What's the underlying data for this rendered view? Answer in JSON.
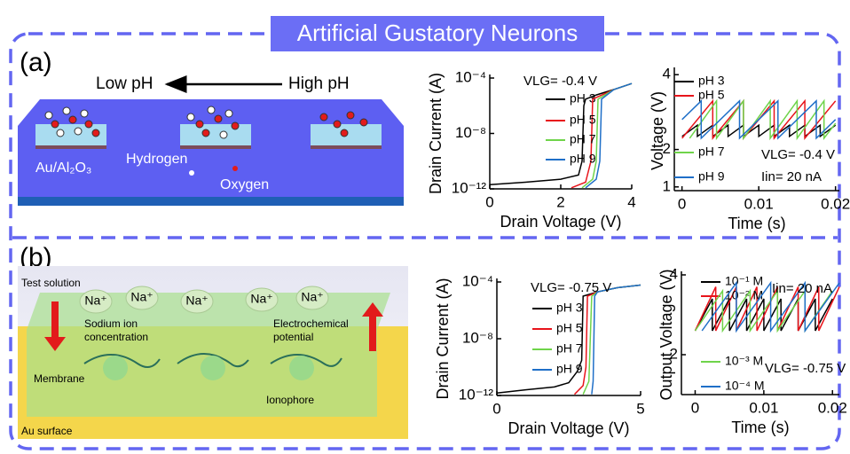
{
  "title": "Artificial Gustatory Neurons",
  "panel_a": {
    "label": "(a)",
    "low_ph": "Low pH",
    "high_ph": "High pH",
    "substrate": "Au/Al₂O₃",
    "hydrogen": "Hydrogen",
    "oxygen": "Oxygen"
  },
  "panel_b": {
    "label": "(b)",
    "test_solution": "Test solution",
    "ions": [
      "Na⁺",
      "Na⁺",
      "Na⁺",
      "Na⁺",
      "Na⁺"
    ],
    "sodium": [
      "Sodium ion",
      "concentration"
    ],
    "potential": [
      "Electrochemical",
      "potential"
    ],
    "membrane": "Membrane",
    "ionophore": "Ionophore",
    "au_surface": "Au surface"
  },
  "chart_data": [
    {
      "type": "line",
      "log_y": true,
      "xlabel": "Drain Voltage (V)",
      "ylabel": "Drain Current (A)",
      "annotations": [
        "VLG= -0.4 V"
      ],
      "xlim": [
        0,
        4
      ],
      "xticks": [
        0,
        2,
        4
      ],
      "ylim": [
        1e-12,
        0.0001
      ],
      "yticks": [
        {
          "value": 1e-12,
          "label": "10⁻¹²"
        },
        {
          "value": 1e-08,
          "label": "10⁻⁸"
        },
        {
          "value": 0.0001,
          "label": "10⁻⁴"
        }
      ],
      "series": [
        {
          "name": "pH 3",
          "color": "#000000",
          "x": [
            0,
            1,
            2,
            2.5,
            2.6,
            2.65,
            2.7,
            3,
            3.5,
            4
          ],
          "values": [
            2e-12,
            3e-12,
            5e-12,
            1e-11,
            1e-10,
            1e-06,
            3e-06,
            6e-06,
            1.5e-05,
            4e-05
          ]
        },
        {
          "name": "pH 5",
          "color": "#e8141b",
          "x": [
            2.3,
            2.7,
            2.85,
            2.9,
            3.5,
            4
          ],
          "values": [
            1.2e-12,
            3e-12,
            1e-10,
            3e-06,
            1.5e-05,
            4e-05
          ]
        },
        {
          "name": "pH 7",
          "color": "#6fd44a",
          "x": [
            2.6,
            2.9,
            3.0,
            3.05,
            3.5,
            4
          ],
          "values": [
            1.2e-12,
            5e-12,
            1e-10,
            3e-06,
            1.5e-05,
            4e-05
          ]
        },
        {
          "name": "pH 9",
          "color": "#1f6fc8",
          "x": [
            2.7,
            3.0,
            3.1,
            3.15,
            3.5,
            4
          ],
          "values": [
            1.2e-12,
            5e-12,
            1e-10,
            3e-06,
            1.5e-05,
            4e-05
          ]
        }
      ]
    },
    {
      "type": "line",
      "log_y": false,
      "xlabel": "Time (s)",
      "ylabel": "Voltage (V)",
      "annotations": [
        "VLG= -0.4 V",
        "Iin= 20 nA"
      ],
      "xlim": [
        -0.001,
        0.0205
      ],
      "xticks": [
        0,
        0.01,
        0.02
      ],
      "ylim": [
        0.9,
        4.1
      ],
      "yticks": [
        1,
        2,
        4
      ],
      "series": [
        {
          "name": "pH 3",
          "color": "#000000",
          "x": [
            0,
            0.002,
            0.002,
            0.004,
            0.004,
            0.006,
            0.006,
            0.008,
            0.008,
            0.01,
            0.01,
            0.012,
            0.012,
            0.014,
            0.014,
            0.016,
            0.016,
            0.018,
            0.018,
            0.02
          ],
          "values": [
            2.35,
            2.65,
            2.35,
            2.65,
            2.35,
            2.65,
            2.35,
            2.65,
            2.35,
            2.65,
            2.35,
            2.65,
            2.35,
            2.65,
            2.35,
            2.65,
            2.35,
            2.65,
            2.35,
            2.65
          ]
        },
        {
          "name": "pH 5",
          "color": "#e8141b",
          "x": [
            0,
            0.004,
            0.004,
            0.008,
            0.008,
            0.012,
            0.012,
            0.016,
            0.016,
            0.02
          ],
          "values": [
            2.3,
            3.3,
            2.3,
            3.3,
            2.3,
            3.3,
            2.3,
            3.3,
            2.3,
            3.3
          ]
        },
        {
          "name": "pH 7",
          "color": "#6fd44a",
          "x": [
            0.001,
            0.0045,
            0.0045,
            0.008,
            0.008,
            0.0115,
            0.0115,
            0.015,
            0.015,
            0.0185,
            0.0185,
            0.02
          ],
          "values": [
            2.3,
            3.3,
            2.3,
            3.3,
            2.3,
            3.3,
            2.3,
            3.3,
            2.3,
            3.3,
            2.3,
            2.7
          ]
        },
        {
          "name": "pH 9",
          "color": "#1f6fc8",
          "x": [
            0,
            0.0025,
            0.0025,
            0.0075,
            0.0075,
            0.0125,
            0.0125,
            0.0175,
            0.0175,
            0.02
          ],
          "values": [
            2.8,
            3.3,
            2.3,
            3.3,
            2.3,
            3.3,
            2.3,
            3.3,
            2.3,
            2.8
          ]
        }
      ]
    },
    {
      "type": "line",
      "log_y": true,
      "xlabel": "Drain Voltage (V)",
      "ylabel": "Drain Current (A)",
      "annotations": [
        "VLG= -0.75 V"
      ],
      "xlim": [
        0,
        5
      ],
      "xticks": [
        0,
        5
      ],
      "ylim": [
        1e-12,
        0.0001
      ],
      "yticks": [
        {
          "value": 1e-12,
          "label": "10⁻¹²"
        },
        {
          "value": 1e-08,
          "label": "10⁻⁸"
        },
        {
          "value": 0.0001,
          "label": "10⁻⁴"
        }
      ],
      "series": [
        {
          "name": "pH 3",
          "color": "#000000",
          "x": [
            0,
            1,
            2,
            2.5,
            2.8,
            2.95,
            3.0,
            3.5,
            4.2,
            5
          ],
          "values": [
            1.5e-12,
            2.5e-12,
            4e-12,
            8e-12,
            5e-11,
            3e-10,
            1e-05,
            2e-05,
            4e-05,
            6e-05
          ]
        },
        {
          "name": "pH 5",
          "color": "#e8141b",
          "x": [
            2.7,
            3.0,
            3.1,
            3.15,
            3.5,
            4.2,
            5
          ],
          "values": [
            1.2e-12,
            5e-12,
            1e-10,
            1e-05,
            2e-05,
            4e-05,
            6e-05
          ]
        },
        {
          "name": "pH 7",
          "color": "#6fd44a",
          "x": [
            3.0,
            3.2,
            3.3,
            3.5,
            4.2,
            5
          ],
          "values": [
            1.2e-12,
            1e-11,
            1e-05,
            2e-05,
            4e-05,
            6e-05
          ]
        },
        {
          "name": "pH 9",
          "color": "#1f6fc8",
          "x": [
            3.3,
            3.35,
            3.4,
            3.5,
            4.2,
            5
          ],
          "values": [
            1.2e-12,
            1e-11,
            1e-05,
            2e-05,
            4e-05,
            6e-05
          ]
        }
      ]
    },
    {
      "type": "line",
      "log_y": false,
      "xlabel": "Time (s)",
      "ylabel": "Output Voltage (V)",
      "annotations": [
        "Iin= 20 nA",
        "VLG= -0.75 V"
      ],
      "xlim": [
        -0.002,
        0.021
      ],
      "xticks": [
        0,
        0.01,
        0.02
      ],
      "ylim": [
        1,
        4
      ],
      "yticks": [
        2,
        4
      ],
      "series": [
        {
          "name": "10⁻¹ M",
          "color": "#000000",
          "x": [
            0,
            0.0025,
            0.0025,
            0.005,
            0.005,
            0.0075,
            0.0075,
            0.01,
            0.01,
            0.0125,
            0.0125,
            0.015,
            0.015,
            0.0175,
            0.0175,
            0.02
          ],
          "values": [
            2.6,
            3.4,
            2.6,
            3.4,
            2.6,
            3.4,
            2.6,
            3.4,
            2.6,
            3.4,
            2.6,
            3.4,
            2.6,
            3.4,
            2.6,
            3.4
          ]
        },
        {
          "name": "10⁻² M",
          "color": "#e8141b",
          "x": [
            0,
            0.003,
            0.003,
            0.006,
            0.006,
            0.009,
            0.009,
            0.012,
            0.012,
            0.015,
            0.015,
            0.018,
            0.018,
            0.021
          ],
          "values": [
            2.6,
            3.7,
            2.6,
            3.7,
            2.6,
            3.7,
            2.6,
            3.7,
            2.6,
            3.7,
            2.6,
            3.7,
            2.6,
            3.7
          ]
        },
        {
          "name": "10⁻³ M",
          "color": "#6fd44a",
          "x": [
            0,
            0.004,
            0.004,
            0.008,
            0.008,
            0.012,
            0.012,
            0.016,
            0.016,
            0.02
          ],
          "values": [
            2.6,
            3.6,
            2.6,
            3.6,
            2.6,
            3.6,
            2.6,
            3.6,
            2.6,
            3.6
          ]
        },
        {
          "name": "10⁻⁴ M",
          "color": "#1f6fc8",
          "x": [
            0.001,
            0.006,
            0.006,
            0.011,
            0.011,
            0.016,
            0.016,
            0.021
          ],
          "values": [
            2.6,
            3.8,
            2.6,
            3.8,
            2.6,
            3.8,
            2.6,
            3.8
          ]
        }
      ]
    }
  ]
}
